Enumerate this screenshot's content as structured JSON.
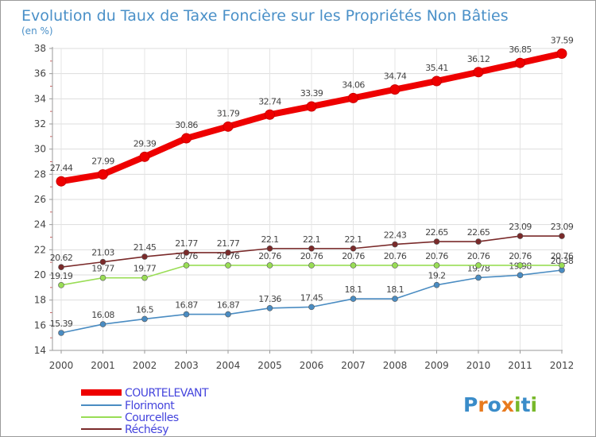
{
  "chart_data": {
    "type": "line",
    "title": "Evolution du Taux de Taxe Foncière sur les Propriétés Non Bâties",
    "ylabel": "(en %)",
    "xlabel": "",
    "x": [
      "2000",
      "2001",
      "2002",
      "2003",
      "2004",
      "2005",
      "2006",
      "2007",
      "2008",
      "2009",
      "2010",
      "2011",
      "2012"
    ],
    "ylim": [
      14,
      38
    ],
    "yticks": [
      "14",
      "16",
      "18",
      "20",
      "22",
      "24",
      "26",
      "28",
      "30",
      "32",
      "34",
      "36",
      "38"
    ],
    "grid": true,
    "legend": "bottom-left",
    "series": [
      {
        "name": "COURTELEVANT",
        "color": "#ee0000",
        "values": [
          27.44,
          27.99,
          29.39,
          30.86,
          31.79,
          32.74,
          33.39,
          34.06,
          34.74,
          35.41,
          36.12,
          36.85,
          37.59
        ],
        "labels": [
          "27.44",
          "27.99",
          "29.39",
          "30.86",
          "31.79",
          "32.74",
          "33.39",
          "34.06",
          "34.74",
          "35.41",
          "36.12",
          "36.85",
          "37.59"
        ]
      },
      {
        "name": "Florimont",
        "color": "#4a8cc2",
        "values": [
          15.39,
          16.08,
          16.5,
          16.87,
          16.87,
          17.36,
          17.45,
          18.1,
          18.1,
          19.2,
          19.78,
          19.98,
          20.38
        ],
        "labels": [
          "15.39",
          "16.08",
          "16.5",
          "16.87",
          "16.87",
          "17.36",
          "17.45",
          "18.1",
          "18.1",
          "19.2",
          "19.78",
          "19.98",
          "20.38"
        ]
      },
      {
        "name": "Courcelles",
        "color": "#99dd55",
        "values": [
          19.19,
          19.77,
          19.77,
          20.76,
          20.76,
          20.76,
          20.76,
          20.76,
          20.76,
          20.76,
          20.76,
          20.76,
          20.76
        ],
        "labels": [
          "19.19",
          "19.77",
          "19.77",
          "20.76",
          "20.76",
          "20.76",
          "20.76",
          "20.76",
          "20.76",
          "20.76",
          "20.76",
          "20.76",
          "20.76"
        ]
      },
      {
        "name": "Réchésy",
        "color": "#7a2a2a",
        "values": [
          20.62,
          21.03,
          21.45,
          21.77,
          21.77,
          22.1,
          22.1,
          22.1,
          22.43,
          22.65,
          22.65,
          23.09,
          23.09
        ],
        "labels": [
          "20.62",
          "21.03",
          "21.45",
          "21.77",
          "21.77",
          "22.1",
          "22.1",
          "22.1",
          "22.43",
          "22.65",
          "22.65",
          "23.09",
          "23.09"
        ]
      }
    ]
  },
  "logo": {
    "text": "Proxiti"
  }
}
